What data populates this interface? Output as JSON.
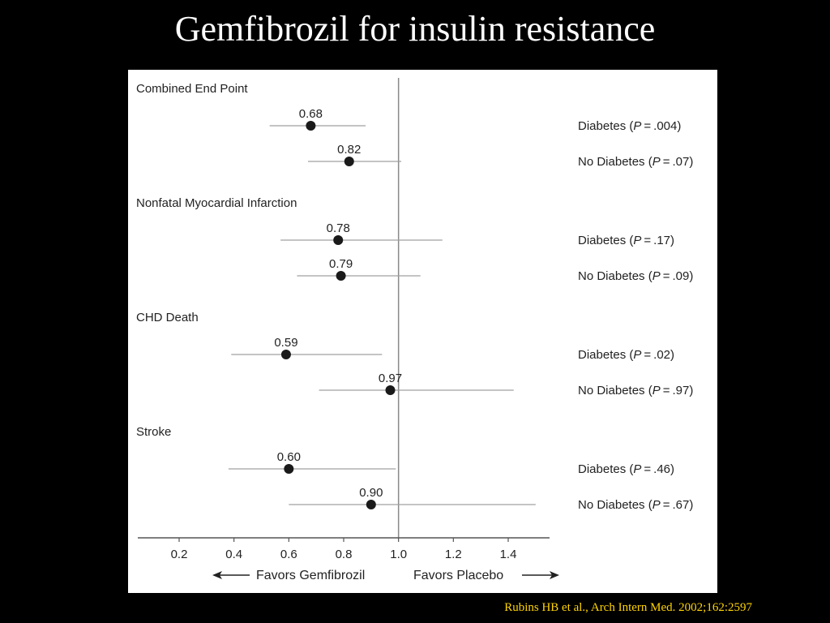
{
  "slide": {
    "title": "Gemfibrozil for insulin resistance",
    "citation": "Rubins HB et al., Arch Intern Med. 2002;162:2597"
  },
  "chart_data": {
    "type": "forest",
    "reference_line": 1.0,
    "xlim": [
      0.0,
      1.55
    ],
    "x_ticks": [
      0.2,
      0.4,
      0.6,
      0.8,
      1.0,
      1.2,
      1.4
    ],
    "x_tick_labels": [
      "0.2",
      "0.4",
      "0.6",
      "0.8",
      "1.0",
      "1.2",
      "1.4"
    ],
    "left_arrow_label": "Favors Gemfibrozil",
    "right_arrow_label": "Favors Placebo",
    "groups": [
      {
        "name": "Combined End Point",
        "rows": [
          {
            "label": "Diabetes",
            "p": ".004",
            "estimate": 0.68,
            "est_label": "0.68",
            "ci": [
              0.53,
              0.88
            ]
          },
          {
            "label": "No Diabetes",
            "p": ".07",
            "estimate": 0.82,
            "est_label": "0.82",
            "ci": [
              0.67,
              1.01
            ]
          }
        ]
      },
      {
        "name": "Nonfatal Myocardial Infarction",
        "rows": [
          {
            "label": "Diabetes",
            "p": ".17",
            "estimate": 0.78,
            "est_label": "0.78",
            "ci": [
              0.57,
              1.16
            ]
          },
          {
            "label": "No Diabetes",
            "p": ".09",
            "estimate": 0.79,
            "est_label": "0.79",
            "ci": [
              0.63,
              1.08
            ]
          }
        ]
      },
      {
        "name": "CHD Death",
        "rows": [
          {
            "label": "Diabetes",
            "p": ".02",
            "estimate": 0.59,
            "est_label": "0.59",
            "ci": [
              0.39,
              0.94
            ]
          },
          {
            "label": "No Diabetes",
            "p": ".97",
            "estimate": 0.97,
            "est_label": "0.97",
            "ci": [
              0.71,
              1.42
            ]
          }
        ]
      },
      {
        "name": "Stroke",
        "rows": [
          {
            "label": "Diabetes",
            "p": ".46",
            "estimate": 0.6,
            "est_label": "0.60",
            "ci": [
              0.38,
              0.99
            ]
          },
          {
            "label": "No Diabetes",
            "p": ".67",
            "estimate": 0.9,
            "est_label": "0.90",
            "ci": [
              0.6,
              1.5
            ]
          }
        ]
      }
    ]
  }
}
